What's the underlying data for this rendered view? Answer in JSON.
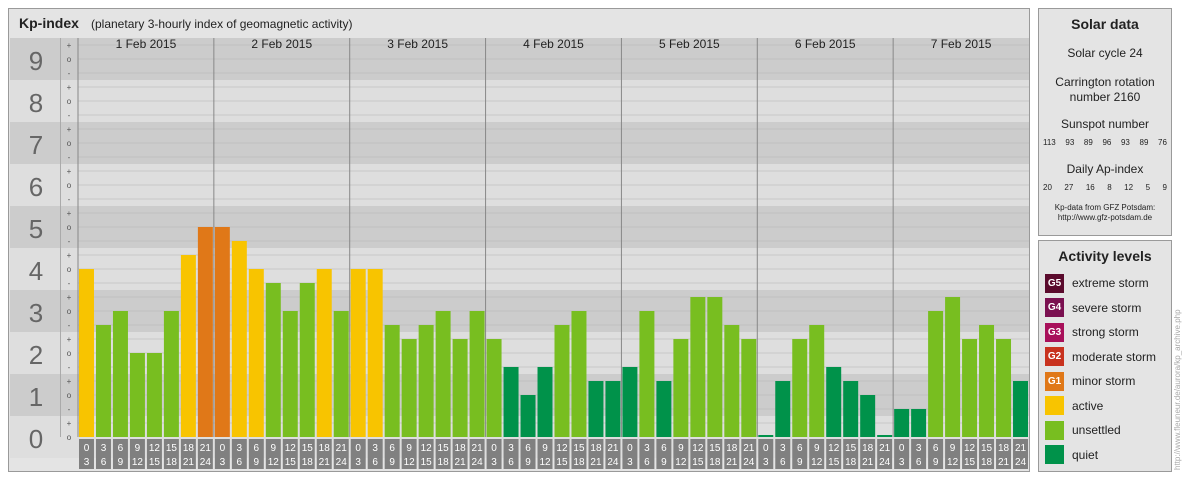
{
  "header": {
    "title": "Kp-index",
    "subtitle": "(planetary 3-hourly index of geomagnetic activity)"
  },
  "chart_data": {
    "type": "bar",
    "ylim": [
      0,
      9
    ],
    "y_ticks": [
      "0",
      "1",
      "2",
      "3",
      "4",
      "5",
      "6",
      "7",
      "8",
      "9"
    ],
    "minor_ticks": [
      "-",
      "o",
      "+"
    ],
    "days": [
      "1 Feb 2015",
      "2 Feb 2015",
      "3 Feb 2015",
      "4 Feb 2015",
      "5 Feb 2015",
      "6 Feb 2015",
      "7 Feb 2015"
    ],
    "interval_labels": [
      [
        "0",
        "3"
      ],
      [
        "3",
        "6"
      ],
      [
        "6",
        "9"
      ],
      [
        "9",
        "12"
      ],
      [
        "12",
        "15"
      ],
      [
        "15",
        "18"
      ],
      [
        "18",
        "21"
      ],
      [
        "21",
        "24"
      ]
    ],
    "values": [
      [
        4.0,
        2.667,
        3.0,
        2.0,
        2.0,
        3.0,
        4.333,
        5.0
      ],
      [
        5.0,
        4.667,
        4.0,
        3.667,
        3.0,
        3.667,
        4.0,
        3.0
      ],
      [
        4.0,
        4.0,
        2.667,
        2.333,
        2.667,
        3.0,
        2.333,
        3.0
      ],
      [
        2.333,
        1.667,
        1.0,
        1.667,
        2.667,
        3.0,
        1.333,
        1.333
      ],
      [
        1.667,
        3.0,
        1.333,
        2.333,
        3.333,
        3.333,
        2.667,
        2.333
      ],
      [
        0.0,
        1.333,
        2.333,
        2.667,
        1.667,
        1.333,
        1.0,
        0.0
      ],
      [
        0.667,
        0.667,
        3.0,
        3.333,
        2.333,
        2.667,
        2.333,
        1.333
      ]
    ],
    "grid": true
  },
  "solar": {
    "title": "Solar data",
    "cycle": "Solar cycle 24",
    "carrington_line1": "Carrington rotation",
    "carrington_line2": "number 2160",
    "sunspot_title": "Sunspot number",
    "sunspots": [
      "113",
      "93",
      "89",
      "96",
      "93",
      "89",
      "76"
    ],
    "ap_title": "Daily Ap-index",
    "ap": [
      "20",
      "27",
      "16",
      "8",
      "12",
      "5",
      "9"
    ],
    "credit_line1": "Kp-data from GFZ Potsdam:",
    "credit_line2": "http://www.gfz-potsdam.de"
  },
  "activity": {
    "title": "Activity levels",
    "levels": [
      {
        "badge": "G5",
        "label": "extreme storm",
        "color": "#5a0a2c"
      },
      {
        "badge": "G4",
        "label": "severe storm",
        "color": "#7a1050"
      },
      {
        "badge": "G3",
        "label": "strong storm",
        "color": "#a8105a"
      },
      {
        "badge": "G2",
        "label": "moderate storm",
        "color": "#c8321e"
      },
      {
        "badge": "G1",
        "label": "minor storm",
        "color": "#e07818"
      },
      {
        "badge": "",
        "label": "active",
        "color": "#f8c400"
      },
      {
        "badge": "",
        "label": "unsettled",
        "color": "#78be20"
      },
      {
        "badge": "",
        "label": "quiet",
        "color": "#00924a"
      }
    ]
  },
  "side_credit": "http://www.fleuneur.de/aurora/kp_archive.php",
  "colors": {
    "quiet": "#00924a",
    "unsettled": "#78be20",
    "active": "#f8c400",
    "storm": "#e07818",
    "band_dark": "#cccccc",
    "band_light": "#dedede",
    "label_bg": "#808080"
  }
}
